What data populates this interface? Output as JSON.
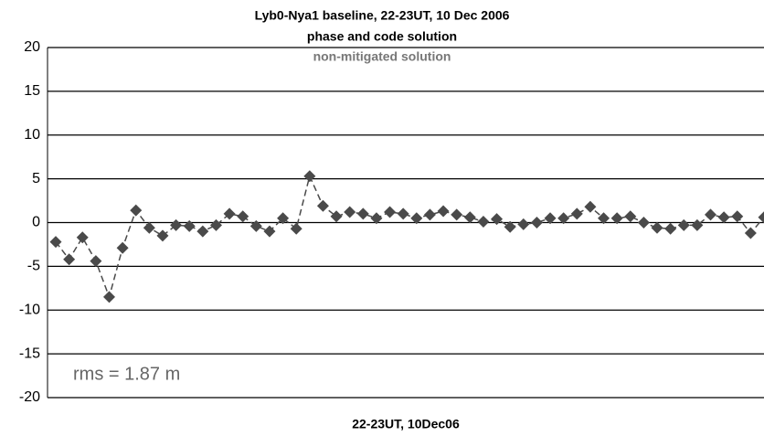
{
  "chart_data": {
    "type": "line",
    "title": "Lyb0-Nya1 baseline, 22-23UT, 10 Dec 2006",
    "subtitle": "phase and code solution",
    "annotations": [
      "non-mitigated solution",
      "rms = 1.87 m"
    ],
    "x_label": "22-23UT, 10Dec06",
    "categories": [
      null,
      null,
      null,
      null,
      null,
      null,
      null,
      null,
      null,
      null,
      null,
      null,
      null,
      null,
      null,
      null,
      null,
      null,
      null,
      null,
      null,
      null,
      null,
      null,
      null,
      null,
      null,
      null,
      null,
      null,
      null,
      null,
      null,
      null,
      null,
      null,
      null,
      null,
      null,
      null,
      null,
      null,
      null,
      null,
      null,
      null,
      null,
      null,
      null,
      null,
      null,
      null,
      null,
      null
    ],
    "values": [
      -2.2,
      -4.2,
      -1.7,
      -4.4,
      -8.5,
      -2.9,
      1.4,
      -0.6,
      -1.5,
      -0.3,
      -0.4,
      -1.0,
      -0.3,
      1.0,
      0.7,
      -0.4,
      -1.0,
      0.5,
      -0.7,
      5.3,
      1.9,
      0.7,
      1.2,
      1.0,
      0.5,
      1.2,
      1.0,
      0.5,
      0.9,
      1.3,
      0.9,
      0.6,
      0.1,
      0.4,
      -0.5,
      -0.2,
      0,
      0.5,
      0.5,
      1.0,
      1.8,
      0.5,
      0.5,
      0.7,
      0,
      -0.6,
      -0.7,
      -0.3,
      -0.3,
      0.9,
      0.6,
      0.7,
      -1.2,
      0.6
    ],
    "color": "#4a4a4a",
    "line_style": "dashed",
    "marker": "diamond",
    "ylim": [
      -20,
      20
    ],
    "yticks": [
      -20,
      -15,
      -10,
      -5,
      0,
      5,
      10,
      15,
      20
    ],
    "grid": true
  }
}
